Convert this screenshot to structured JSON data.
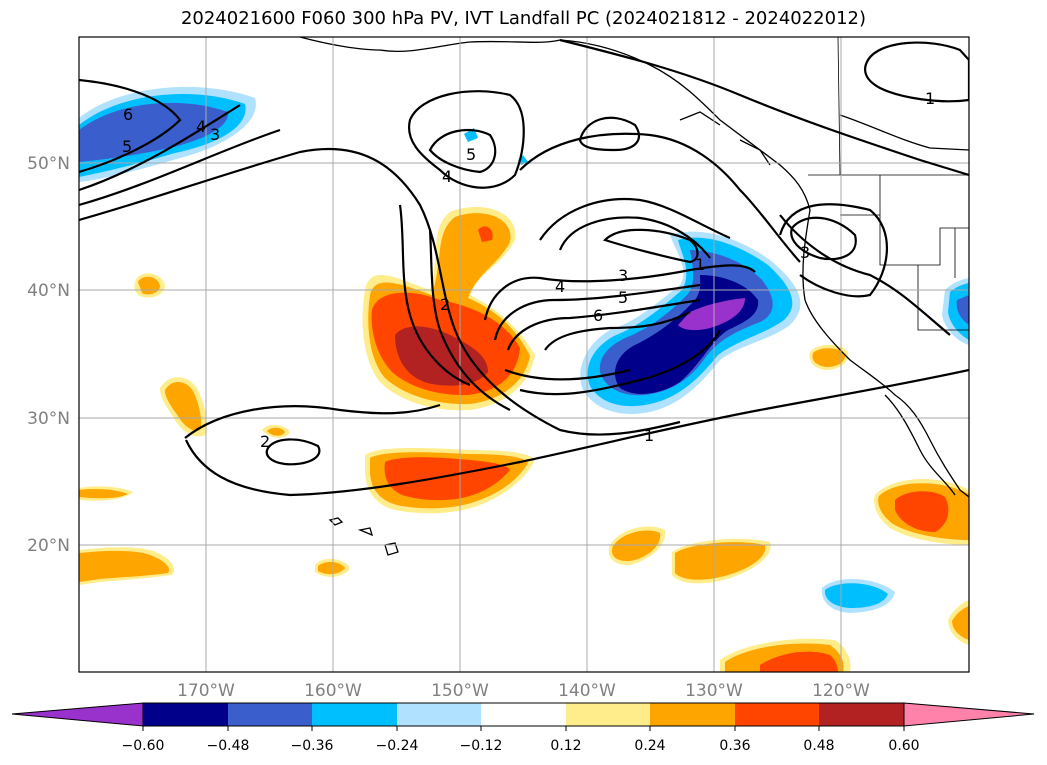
{
  "title": "2024021600 F060 300 hPa PV, IVT Landfall PC (2024021812 - 2024022012)",
  "map": {
    "lon_range": [
      -180,
      -110
    ],
    "lat_range": [
      10,
      60
    ],
    "lat_ticks": [
      {
        "value": 50,
        "label": "50°N"
      },
      {
        "value": 40,
        "label": "40°N"
      },
      {
        "value": 30,
        "label": "30°N"
      },
      {
        "value": 20,
        "label": "20°N"
      }
    ],
    "lon_ticks": [
      {
        "value": -170,
        "label": "170°W"
      },
      {
        "value": -160,
        "label": "160°W"
      },
      {
        "value": -150,
        "label": "150°W"
      },
      {
        "value": -140,
        "label": "140°W"
      },
      {
        "value": -130,
        "label": "130°W"
      },
      {
        "value": -120,
        "label": "120°W"
      }
    ],
    "contour_labels": [
      "6",
      "4",
      "5",
      "3",
      "5",
      "4",
      "1",
      "3",
      "2",
      "3",
      "4",
      "5",
      "6",
      "1",
      "1",
      "2"
    ]
  },
  "colorbar": {
    "ticks": [
      "−0.60",
      "−0.48",
      "−0.36",
      "−0.24",
      "−0.12",
      "0.12",
      "0.24",
      "0.36",
      "0.48",
      "0.60"
    ],
    "colors": [
      "#9932cc",
      "#00008b",
      "#3a5fcd",
      "#00bfff",
      "#b0e2ff",
      "#ffffff",
      "#ffec8b",
      "#ffa500",
      "#ff4500",
      "#b22222",
      "#ff82ab"
    ]
  }
}
